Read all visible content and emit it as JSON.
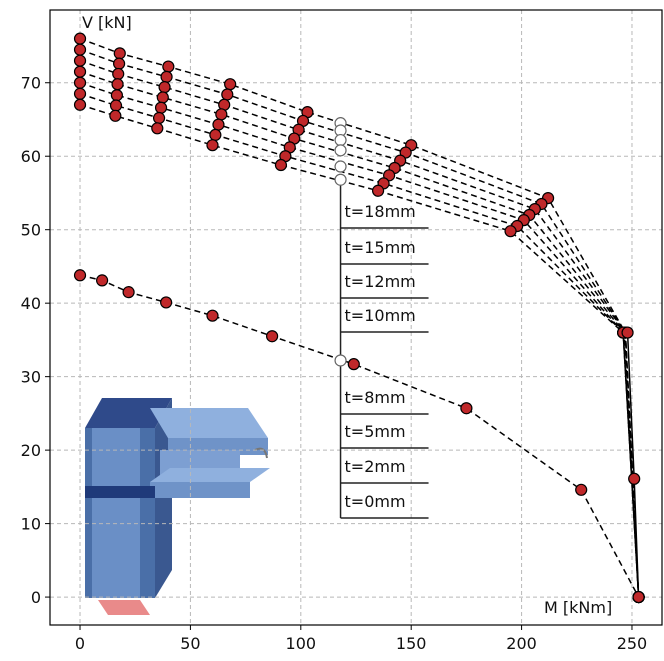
{
  "chart_data": {
    "type": "line",
    "y_label": "V [kN]",
    "x_label": "M [kNm]",
    "xlim": [
      -13.6,
      263.6
    ],
    "ylim": [
      -3.8,
      79.9
    ],
    "xticks": [
      0,
      50,
      100,
      150,
      200,
      250
    ],
    "yticks": [
      0,
      10,
      20,
      30,
      40,
      50,
      60,
      70
    ],
    "grid": true,
    "line_color": "#000000",
    "marker_color": "#c0282a",
    "series": [
      {
        "x": [
          0,
          18,
          40,
          68,
          103,
          150,
          212,
          247,
          253
        ],
        "values": [
          76,
          74,
          72.2,
          69.8,
          66,
          61.5,
          54.3,
          36,
          0
        ],
        "line_style": "dashed"
      },
      {
        "x": [
          0,
          17.7,
          39.2,
          66.7,
          101,
          147.5,
          209,
          247,
          253
        ],
        "values": [
          74.5,
          72.6,
          70.8,
          68.4,
          64.8,
          60.5,
          53.5,
          36,
          0
        ],
        "line_style": "dashed"
      },
      {
        "x": [
          0,
          17.3,
          38.3,
          65.3,
          99,
          145,
          206,
          247,
          253
        ],
        "values": [
          73,
          71.2,
          69.4,
          67,
          63.6,
          59.4,
          52.8,
          36,
          0
        ],
        "line_style": "dashed"
      },
      {
        "x": [
          0,
          17,
          37.5,
          64,
          97,
          142.5,
          203.5,
          246.5,
          253
        ],
        "values": [
          71.5,
          69.8,
          68,
          65.7,
          62.4,
          58.4,
          52,
          36,
          0
        ],
        "line_style": "dashed"
      },
      {
        "x": [
          0,
          16.7,
          36.7,
          62.7,
          95,
          140,
          201,
          246,
          253
        ],
        "values": [
          70,
          68.3,
          66.6,
          64.3,
          61.2,
          57.4,
          51.3,
          36,
          0
        ],
        "line_style": "dashed"
      },
      {
        "x": [
          0,
          16.3,
          35.8,
          61.3,
          93,
          137.5,
          198,
          246,
          253
        ],
        "values": [
          68.5,
          66.9,
          65.2,
          62.9,
          60,
          56.3,
          50.5,
          36,
          0
        ],
        "line_style": "dashed"
      },
      {
        "x": [
          0,
          16,
          35,
          60,
          91,
          135,
          195,
          246,
          253
        ],
        "values": [
          67,
          65.5,
          63.8,
          61.5,
          58.8,
          55.3,
          49.8,
          36,
          0
        ],
        "line_style": "dashed"
      },
      {
        "x": [
          0,
          10,
          22,
          39,
          60,
          87,
          124,
          175,
          227,
          253
        ],
        "values": [
          43.8,
          43.1,
          41.5,
          40.1,
          38.3,
          35.5,
          31.7,
          25.7,
          14.6,
          0
        ],
        "line_style": "dashed"
      },
      {
        "x": [
          248,
          251,
          253
        ],
        "values": [
          36,
          16.1,
          0
        ],
        "line_style": "solid"
      },
      {
        "x": [
          118,
          118,
          118,
          118,
          118,
          118,
          118
        ],
        "values": [
          64.5,
          63.5,
          62.2,
          60.8,
          58.6,
          56.8,
          32.2
        ],
        "line_style": "none",
        "marker_color": "#ffffff"
      }
    ],
    "annotations": [
      "t=18mm",
      "t=15mm",
      "t=12mm",
      "t=10mm",
      "t=8mm",
      "t=5mm",
      "t=2mm",
      "t=0mm"
    ]
  }
}
